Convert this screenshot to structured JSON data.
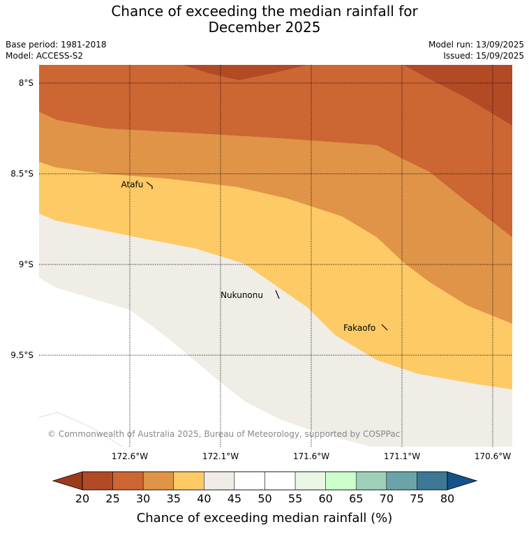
{
  "title_line1": "Chance of exceeding the median rainfall for",
  "title_line2": "December 2025",
  "base_period": "Base period: 1981-2018",
  "model": "Model: ACCESS-S2",
  "model_run": "Model run: 13/09/2025",
  "issued": "Issued: 15/09/2025",
  "copyright": "© Commonwealth of Australia 2025, Bureau of Meteorology, supported by COSPPac",
  "map": {
    "lat_ticks": [
      {
        "value": -8.0,
        "label": "8°S"
      },
      {
        "value": -8.5,
        "label": "8.5°S"
      },
      {
        "value": -9.0,
        "label": "9°S"
      },
      {
        "value": -9.5,
        "label": "9.5°S"
      }
    ],
    "lon_ticks": [
      {
        "value": -172.6,
        "label": "172.6°W"
      },
      {
        "value": -172.1,
        "label": "172.1°W"
      },
      {
        "value": -171.6,
        "label": "171.6°W"
      },
      {
        "value": -171.1,
        "label": "171.1°W"
      },
      {
        "value": -170.6,
        "label": "170.6°W"
      }
    ],
    "places": [
      {
        "name": "Atafu",
        "lon": -172.51,
        "lat": -8.56
      },
      {
        "name": "Nukunonu",
        "lon": -171.85,
        "lat": -9.17
      },
      {
        "name": "Fakaofo",
        "lon": -171.23,
        "lat": -9.35
      }
    ]
  },
  "colorbar": {
    "title": "Chance of exceeding median rainfall (%)",
    "levels": [
      20,
      25,
      30,
      35,
      40,
      45,
      50,
      55,
      60,
      65,
      70,
      75,
      80
    ],
    "colors": [
      "#b24a26",
      "#cc6633",
      "#e09448",
      "#fdca65",
      "#f0ece6",
      "#ffffff",
      "#ffffff",
      "#eaf6e6",
      "#ccffcc",
      "#9ed0b9",
      "#6aa4a8",
      "#3d7896"
    ],
    "under_color": "#9c3a1c",
    "over_color": "#155287"
  },
  "legend_colors": {
    "p20_25": "#b24a26",
    "p25_30": "#cc6633",
    "p30_35": "#e09448",
    "p35_40": "#fdca65",
    "p40_45": "#f0ece6"
  }
}
